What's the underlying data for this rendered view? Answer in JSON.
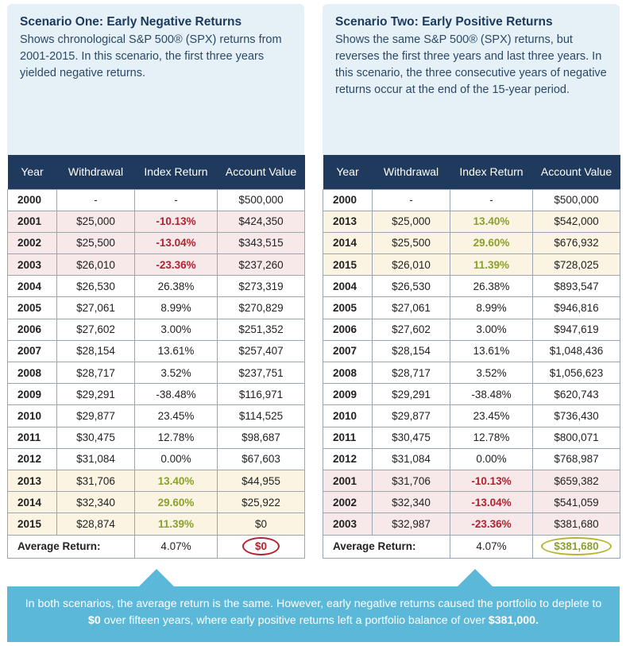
{
  "scenarios": [
    {
      "title": "Scenario One: Early Negative Returns",
      "description": "Shows chronological S&P 500® (SPX)  returns from 2001-2015. In this scenario, the first three years yielded negative returns.",
      "headers": [
        "Year",
        "Withdrawal",
        "Index Return",
        "Account Value"
      ],
      "rows": [
        {
          "year": "2000",
          "withdrawal": "-",
          "ret": "-",
          "value": "$500,000",
          "tone": "none"
        },
        {
          "year": "2001",
          "withdrawal": "$25,000",
          "ret": "-10.13%",
          "value": "$424,350",
          "tone": "neg"
        },
        {
          "year": "2002",
          "withdrawal": "$25,500",
          "ret": "-13.04%",
          "value": "$343,515",
          "tone": "neg"
        },
        {
          "year": "2003",
          "withdrawal": "$26,010",
          "ret": "-23.36%",
          "value": "$237,260",
          "tone": "neg"
        },
        {
          "year": "2004",
          "withdrawal": "$26,530",
          "ret": "26.38%",
          "value": "$273,319",
          "tone": "none"
        },
        {
          "year": "2005",
          "withdrawal": "$27,061",
          "ret": "8.99%",
          "value": "$270,829",
          "tone": "none"
        },
        {
          "year": "2006",
          "withdrawal": "$27,602",
          "ret": "3.00%",
          "value": "$251,352",
          "tone": "none"
        },
        {
          "year": "2007",
          "withdrawal": "$28,154",
          "ret": "13.61%",
          "value": "$257,407",
          "tone": "none"
        },
        {
          "year": "2008",
          "withdrawal": "$28,717",
          "ret": "3.52%",
          "value": "$237,751",
          "tone": "none"
        },
        {
          "year": "2009",
          "withdrawal": "$29,291",
          "ret": "-38.48%",
          "value": "$116,971",
          "tone": "none"
        },
        {
          "year": "2010",
          "withdrawal": "$29,877",
          "ret": "23.45%",
          "value": "$114,525",
          "tone": "none"
        },
        {
          "year": "2011",
          "withdrawal": "$30,475",
          "ret": "12.78%",
          "value": "$98,687",
          "tone": "none"
        },
        {
          "year": "2012",
          "withdrawal": "$31,084",
          "ret": "0.00%",
          "value": "$67,603",
          "tone": "none"
        },
        {
          "year": "2013",
          "withdrawal": "$31,706",
          "ret": "13.40%",
          "value": "$44,955",
          "tone": "pos"
        },
        {
          "year": "2014",
          "withdrawal": "$32,340",
          "ret": "29.60%",
          "value": "$25,922",
          "tone": "pos"
        },
        {
          "year": "2015",
          "withdrawal": "$28,874",
          "ret": "11.39%",
          "value": "$0",
          "tone": "pos"
        }
      ],
      "avg_label": "Average Return:",
      "avg_value": "4.07%",
      "final_value": "$0"
    },
    {
      "title": "Scenario Two: Early Positive Returns",
      "description": "Shows the same S&P 500® (SPX) returns, but reverses the first three years and last three years. In this scenario, the three consecutive years of negative returns occur at the end of the 15-year period.",
      "headers": [
        "Year",
        "Withdrawal",
        "Index Return",
        "Account Value"
      ],
      "rows": [
        {
          "year": "2000",
          "withdrawal": "-",
          "ret": "-",
          "value": "$500,000",
          "tone": "none"
        },
        {
          "year": "2013",
          "withdrawal": "$25,000",
          "ret": "13.40%",
          "value": "$542,000",
          "tone": "pos"
        },
        {
          "year": "2014",
          "withdrawal": "$25,500",
          "ret": "29.60%",
          "value": "$676,932",
          "tone": "pos"
        },
        {
          "year": "2015",
          "withdrawal": "$26,010",
          "ret": "11.39%",
          "value": "$728,025",
          "tone": "pos"
        },
        {
          "year": "2004",
          "withdrawal": "$26,530",
          "ret": "26.38%",
          "value": "$893,547",
          "tone": "none"
        },
        {
          "year": "2005",
          "withdrawal": "$27,061",
          "ret": "8.99%",
          "value": "$946,816",
          "tone": "none"
        },
        {
          "year": "2006",
          "withdrawal": "$27,602",
          "ret": "3.00%",
          "value": "$947,619",
          "tone": "none"
        },
        {
          "year": "2007",
          "withdrawal": "$28,154",
          "ret": "13.61%",
          "value": "$1,048,436",
          "tone": "none"
        },
        {
          "year": "2008",
          "withdrawal": "$28,717",
          "ret": "3.52%",
          "value": "$1,056,623",
          "tone": "none"
        },
        {
          "year": "2009",
          "withdrawal": "$29,291",
          "ret": "-38.48%",
          "value": "$620,743",
          "tone": "none"
        },
        {
          "year": "2010",
          "withdrawal": "$29,877",
          "ret": "23.45%",
          "value": "$736,430",
          "tone": "none"
        },
        {
          "year": "2011",
          "withdrawal": "$30,475",
          "ret": "12.78%",
          "value": "$800,071",
          "tone": "none"
        },
        {
          "year": "2012",
          "withdrawal": "$31,084",
          "ret": "0.00%",
          "value": "$768,987",
          "tone": "none"
        },
        {
          "year": "2001",
          "withdrawal": "$31,706",
          "ret": "-10.13%",
          "value": "$659,382",
          "tone": "neg"
        },
        {
          "year": "2002",
          "withdrawal": "$32,340",
          "ret": "-13.04%",
          "value": "$541,059",
          "tone": "neg"
        },
        {
          "year": "2003",
          "withdrawal": "$32,987",
          "ret": "-23.36%",
          "value": "$381,680",
          "tone": "neg"
        }
      ],
      "avg_label": "Average Return:",
      "avg_value": "4.07%",
      "final_value": "$381,680"
    }
  ],
  "footer": {
    "part1": "In both scenarios, the average return is the same. However, early negative returns caused the portfolio to deplete to ",
    "bold1": "$0",
    "part2": " over fifteen years, where early positive returns left a portfolio balance of over ",
    "bold2": "$381,000."
  },
  "colors": {
    "header_navy": "#1f3a5c",
    "intro_bg": "#e6f1f7",
    "negative_red": "#b3222f",
    "positive_green": "#8aa12c",
    "footer_blue": "#5bb8d8"
  }
}
